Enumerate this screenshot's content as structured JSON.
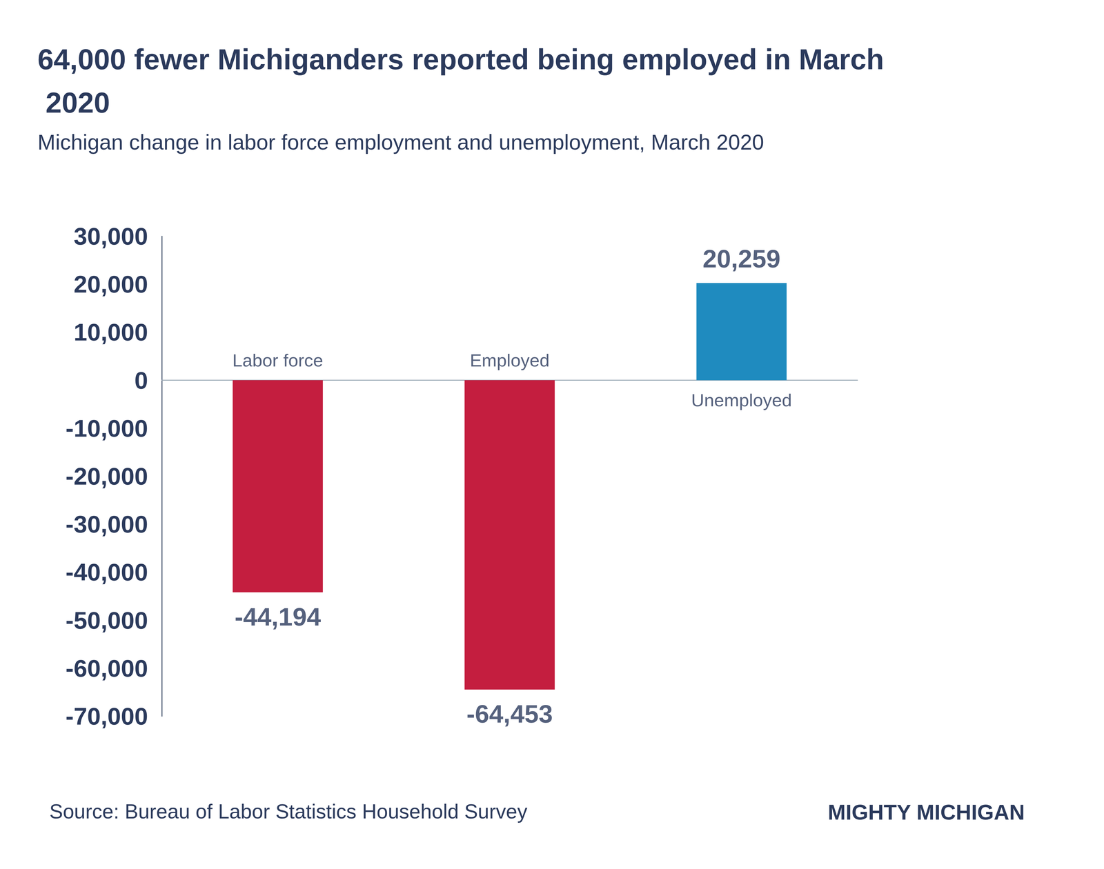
{
  "chart_data": {
    "type": "bar",
    "title": "64,000 fewer Michiganders reported being employed in March 2020",
    "subtitle": "Michigan change in labor force employment and unemployment, March 2020",
    "categories": [
      "Labor force",
      "Employed",
      "Unemployed"
    ],
    "values": [
      -44194,
      -64453,
      20259
    ],
    "value_labels": [
      "-44,194",
      "-64,453",
      "20,259"
    ],
    "colors": [
      "#c41e3f",
      "#c41e3f",
      "#1f8bbf"
    ],
    "ylim": [
      -70000,
      30000
    ],
    "yticks": [
      {
        "value": -70000,
        "label": "-70,000"
      },
      {
        "value": -60000,
        "label": "-60,000"
      },
      {
        "value": -50000,
        "label": "-50,000"
      },
      {
        "value": -40000,
        "label": "-40,000"
      },
      {
        "value": -30000,
        "label": "-30,000"
      },
      {
        "value": -20000,
        "label": "-20,000"
      },
      {
        "value": -10000,
        "label": "-10,000"
      },
      0,
      {
        "value": 10000,
        "label": "10,000"
      },
      {
        "value": 20000,
        "label": "20,000"
      },
      {
        "value": 30000,
        "label": "30,000"
      }
    ],
    "grid": false,
    "data_labels": true,
    "annotations": [
      "Source: Bureau of Labor Statistics Household Survey",
      "MIGHTY MICHIGAN"
    ]
  }
}
